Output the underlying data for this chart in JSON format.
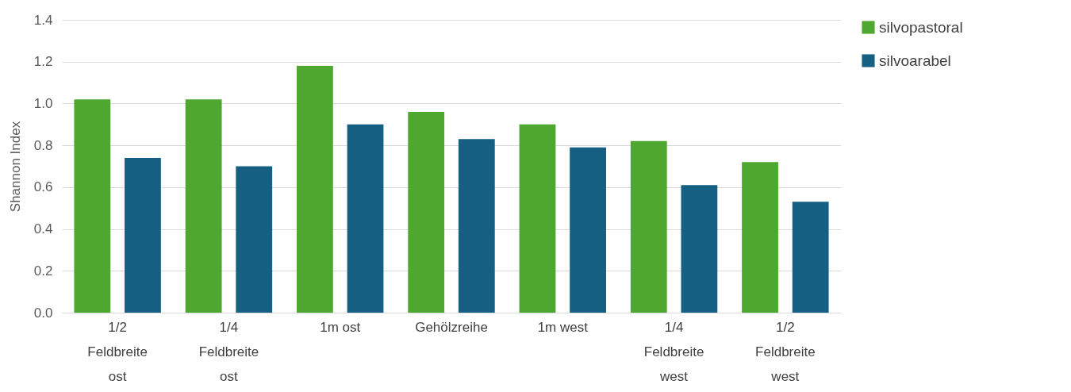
{
  "chart_data": {
    "type": "bar",
    "ylabel": "Shannon Index",
    "categories": [
      "1/2 Feldbreite ost",
      "1/4 Feldbreite ost",
      "1m ost",
      "Gehölzreihe",
      "1m west",
      "1/4 Feldbreite west",
      "1/2 Feldbreite west"
    ],
    "series": [
      {
        "name": "silvopastoral",
        "color": "#4ea72e",
        "values": [
          1.02,
          1.02,
          1.18,
          0.96,
          0.9,
          0.82,
          0.72
        ]
      },
      {
        "name": "silvoarabel",
        "color": "#156082",
        "values": [
          0.74,
          0.7,
          0.9,
          0.83,
          0.79,
          0.61,
          0.53
        ]
      }
    ],
    "ylim": [
      0,
      1.4
    ],
    "yticks": [
      {
        "value": 0,
        "label": "0.0"
      },
      0.2,
      0.4,
      0.6,
      0.8,
      {
        "value": 1,
        "label": "1.0"
      },
      1.2,
      1.4
    ],
    "grid": "y",
    "legend": "right"
  }
}
